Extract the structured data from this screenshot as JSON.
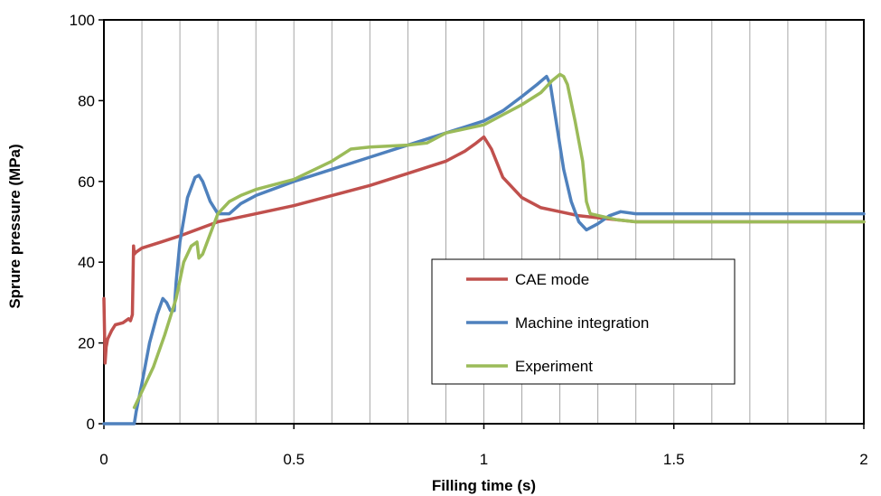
{
  "chart_data": {
    "type": "line",
    "xlabel": "Filling time (s)",
    "ylabel": "Sprure pressure (MPa)",
    "xlim": [
      0,
      2
    ],
    "ylim": [
      0,
      100
    ],
    "x_ticks": [
      0,
      0.5,
      1,
      1.5,
      2
    ],
    "x_tick_labels": [
      "0",
      "0.5",
      "1",
      "1.5",
      "2"
    ],
    "y_ticks": [
      0,
      20,
      40,
      60,
      80,
      100
    ],
    "y_tick_labels": [
      "0",
      "20",
      "40",
      "60",
      "80",
      "100"
    ],
    "x_grid_step": 0.1,
    "grid": "vertical",
    "legend_position": "bottom-right",
    "series": [
      {
        "name": "CAE mode",
        "color": "#c0504d",
        "x": [
          0,
          0.003,
          0.006,
          0.01,
          0.02,
          0.03,
          0.05,
          0.065,
          0.07,
          0.075,
          0.078,
          0.08,
          0.085,
          0.1,
          0.15,
          0.2,
          0.3,
          0.4,
          0.5,
          0.6,
          0.7,
          0.8,
          0.9,
          0.95,
          0.98,
          1.0,
          1.02,
          1.05,
          1.1,
          1.15,
          1.2,
          1.25,
          1.3,
          1.4,
          1.5,
          2.0
        ],
        "y": [
          31,
          15,
          19,
          21,
          23,
          24.5,
          25,
          26,
          25.5,
          27,
          44,
          42,
          42.5,
          43.5,
          45,
          46.5,
          50,
          52,
          54,
          56.5,
          59,
          62,
          65,
          67.5,
          69.5,
          71,
          68,
          61,
          56,
          53.5,
          52.5,
          51.5,
          51,
          50,
          50,
          50
        ]
      },
      {
        "name": "Machine integration",
        "color": "#4f81bd",
        "x": [
          0,
          0.08,
          0.085,
          0.1,
          0.12,
          0.14,
          0.155,
          0.165,
          0.175,
          0.185,
          0.19,
          0.2,
          0.22,
          0.24,
          0.25,
          0.26,
          0.28,
          0.3,
          0.33,
          0.36,
          0.4,
          0.5,
          0.6,
          0.7,
          0.8,
          0.9,
          0.95,
          1.0,
          1.05,
          1.1,
          1.14,
          1.165,
          1.175,
          1.19,
          1.21,
          1.23,
          1.25,
          1.27,
          1.3,
          1.33,
          1.36,
          1.4,
          1.5,
          2.0
        ],
        "y": [
          0,
          0,
          3,
          10,
          20,
          27,
          31,
          30,
          28,
          28,
          35,
          45,
          56,
          61,
          61.5,
          60,
          55,
          52,
          52,
          54.5,
          56.5,
          60,
          63,
          66,
          69,
          72,
          73.5,
          75,
          77.5,
          81,
          84,
          86,
          84,
          75,
          63,
          55,
          50,
          48,
          49.5,
          51.5,
          52.5,
          52,
          52,
          52
        ]
      },
      {
        "name": "Experiment",
        "color": "#9bbb59",
        "x": [
          0.08,
          0.1,
          0.13,
          0.16,
          0.19,
          0.21,
          0.23,
          0.245,
          0.25,
          0.26,
          0.28,
          0.3,
          0.33,
          0.36,
          0.4,
          0.5,
          0.6,
          0.65,
          0.7,
          0.8,
          0.85,
          0.9,
          0.95,
          1.0,
          1.05,
          1.1,
          1.15,
          1.18,
          1.2,
          1.21,
          1.22,
          1.24,
          1.26,
          1.27,
          1.28,
          1.35,
          1.4,
          1.5,
          2.0
        ],
        "y": [
          4,
          8,
          14,
          22,
          31,
          40,
          44,
          45,
          41,
          42,
          47,
          52,
          55,
          56.5,
          58,
          60.5,
          65,
          68,
          68.5,
          69,
          69.5,
          72,
          73,
          74,
          76.5,
          79,
          82,
          85,
          86.5,
          86,
          84,
          75,
          65,
          55,
          52,
          50.5,
          50,
          50,
          50
        ]
      }
    ]
  }
}
